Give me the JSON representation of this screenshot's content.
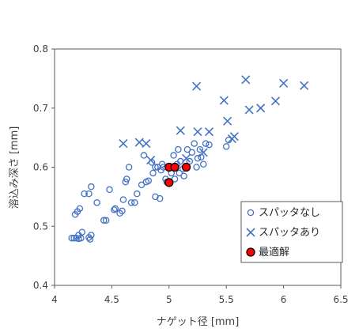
{
  "chart_data": {
    "type": "scatter",
    "xlabel": "ナゲット径 [mm]",
    "ylabel": "溶込み深さ [mm]",
    "xlim": [
      4,
      6.5
    ],
    "ylim": [
      0.4,
      0.8
    ],
    "xticks": [
      "4",
      "4.5",
      "5",
      "5.5",
      "6",
      "6.5"
    ],
    "yticks": [
      "0.4",
      "0.5",
      "0.6",
      "0.7",
      "0.8"
    ],
    "grid": false,
    "legend_position": "bottom-right",
    "series": [
      {
        "name": "スパッタなし",
        "marker": "circle-open",
        "color": "#4472C4",
        "points": [
          [
            4.15,
            0.48
          ],
          [
            4.17,
            0.48
          ],
          [
            4.19,
            0.48
          ],
          [
            4.21,
            0.479
          ],
          [
            4.23,
            0.48
          ],
          [
            4.21,
            0.485
          ],
          [
            4.24,
            0.49
          ],
          [
            4.3,
            0.481
          ],
          [
            4.32,
            0.485
          ],
          [
            4.31,
            0.478
          ],
          [
            4.18,
            0.52
          ],
          [
            4.2,
            0.525
          ],
          [
            4.22,
            0.53
          ],
          [
            4.26,
            0.555
          ],
          [
            4.3,
            0.555
          ],
          [
            4.32,
            0.567
          ],
          [
            4.37,
            0.54
          ],
          [
            4.43,
            0.51
          ],
          [
            4.45,
            0.51
          ],
          [
            4.48,
            0.562
          ],
          [
            4.52,
            0.528
          ],
          [
            4.53,
            0.53
          ],
          [
            4.57,
            0.522
          ],
          [
            4.59,
            0.526
          ],
          [
            4.6,
            0.545
          ],
          [
            4.62,
            0.575
          ],
          [
            4.63,
            0.58
          ],
          [
            4.65,
            0.6
          ],
          [
            4.67,
            0.54
          ],
          [
            4.7,
            0.54
          ],
          [
            4.72,
            0.555
          ],
          [
            4.76,
            0.57
          ],
          [
            4.78,
            0.62
          ],
          [
            4.8,
            0.575
          ],
          [
            4.82,
            0.577
          ],
          [
            4.85,
            0.608
          ],
          [
            4.86,
            0.59
          ],
          [
            4.88,
            0.55
          ],
          [
            4.9,
            0.6
          ],
          [
            4.92,
            0.547
          ],
          [
            4.93,
            0.595
          ],
          [
            4.95,
            0.6
          ],
          [
            4.97,
            0.58
          ],
          [
            4.98,
            0.575
          ],
          [
            4.99,
            0.6
          ],
          [
            5.02,
            0.59
          ],
          [
            5.04,
            0.62
          ],
          [
            5.05,
            0.58
          ],
          [
            5.07,
            0.605
          ],
          [
            5.09,
            0.59
          ],
          [
            5.1,
            0.61
          ],
          [
            5.12,
            0.597
          ],
          [
            5.14,
            0.6
          ],
          [
            5.16,
            0.63
          ],
          [
            5.18,
            0.61
          ],
          [
            5.2,
            0.625
          ],
          [
            5.22,
            0.64
          ],
          [
            5.25,
            0.615
          ],
          [
            5.27,
            0.63
          ],
          [
            5.3,
            0.605
          ],
          [
            5.32,
            0.64
          ],
          [
            5.35,
            0.638
          ],
          [
            5.5,
            0.635
          ],
          [
            5.52,
            0.646
          ],
          [
            4.88,
            0.6
          ],
          [
            4.94,
            0.605
          ],
          [
            5.08,
            0.63
          ],
          [
            5.13,
            0.585
          ],
          [
            5.24,
            0.6
          ],
          [
            5.28,
            0.617
          ]
        ]
      },
      {
        "name": "スパッタあり",
        "marker": "x",
        "color": "#4472C4",
        "points": [
          [
            4.6,
            0.64
          ],
          [
            4.74,
            0.642
          ],
          [
            4.8,
            0.64
          ],
          [
            4.84,
            0.612
          ],
          [
            5.1,
            0.662
          ],
          [
            5.24,
            0.737
          ],
          [
            5.25,
            0.66
          ],
          [
            5.35,
            0.66
          ],
          [
            5.48,
            0.713
          ],
          [
            5.51,
            0.678
          ],
          [
            5.55,
            0.648
          ],
          [
            5.57,
            0.652
          ],
          [
            5.67,
            0.748
          ],
          [
            5.7,
            0.697
          ],
          [
            5.8,
            0.7
          ],
          [
            5.93,
            0.712
          ],
          [
            6.0,
            0.742
          ],
          [
            6.18,
            0.738
          ],
          [
            5.15,
            0.615
          ],
          [
            5.3,
            0.625
          ]
        ]
      },
      {
        "name": "最適解",
        "marker": "circle-filled",
        "color": "#FF0000",
        "points": [
          [
            5.0,
            0.6
          ],
          [
            5.05,
            0.6
          ],
          [
            5.15,
            0.6
          ],
          [
            5.0,
            0.574
          ]
        ]
      }
    ]
  }
}
